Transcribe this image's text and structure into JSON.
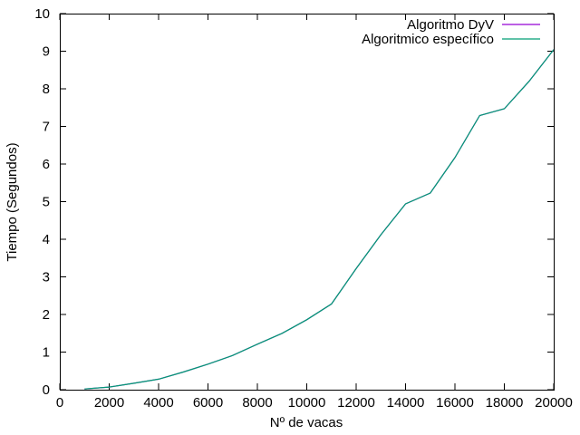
{
  "chart_data": {
    "type": "line",
    "title": "",
    "xlabel": "Nº de vacas",
    "ylabel": "Tiempo (Segundos)",
    "xlim": [
      0,
      20000
    ],
    "ylim": [
      0,
      10
    ],
    "xticks": [
      0,
      2000,
      4000,
      6000,
      8000,
      10000,
      12000,
      14000,
      16000,
      18000,
      20000
    ],
    "yticks": [
      0,
      1,
      2,
      3,
      4,
      5,
      6,
      7,
      8,
      9,
      10
    ],
    "grid": false,
    "legend_position": "top-right",
    "x": [
      1000,
      2000,
      3000,
      4000,
      5000,
      6000,
      7000,
      8000,
      9000,
      10000,
      11000,
      12000,
      13000,
      14000,
      15000,
      16000,
      17000,
      18000,
      19000,
      20000
    ],
    "series": [
      {
        "name": "Algoritmo DyV",
        "color": "#9400d3",
        "values": [
          0.02,
          0.07,
          0.17,
          0.28,
          0.47,
          0.68,
          0.91,
          1.21,
          1.5,
          1.86,
          2.28,
          3.22,
          4.12,
          4.94,
          5.23,
          6.17,
          7.29,
          7.47,
          8.2,
          9.04
        ]
      },
      {
        "name": "Algoritmico específico",
        "color": "#009e73",
        "values": [
          0.02,
          0.07,
          0.17,
          0.28,
          0.47,
          0.68,
          0.91,
          1.21,
          1.5,
          1.86,
          2.28,
          3.22,
          4.12,
          4.94,
          5.23,
          6.17,
          7.29,
          7.47,
          8.2,
          9.04
        ]
      }
    ]
  }
}
